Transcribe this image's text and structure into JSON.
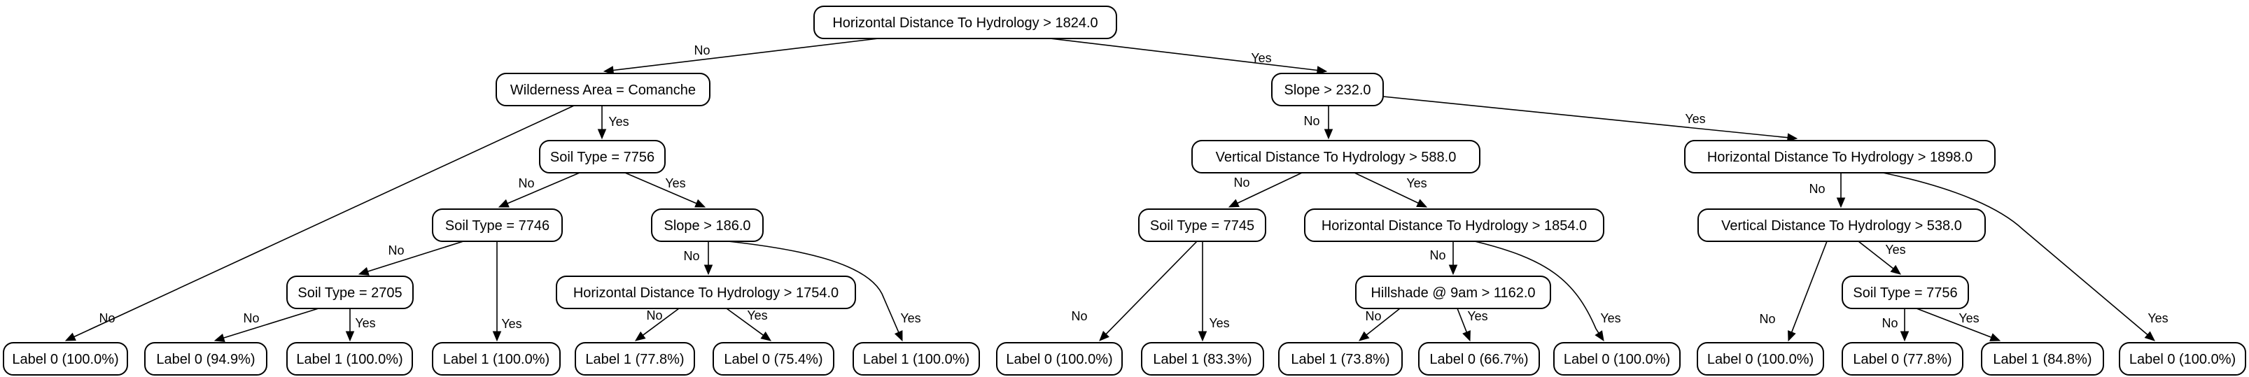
{
  "diagram": {
    "nodes": [
      {
        "id": "n0",
        "label": "Horizontal Distance To Hydrology > 1824.0"
      },
      {
        "id": "n1",
        "label": "Wilderness Area = Comanche"
      },
      {
        "id": "n2",
        "label": "Slope > 232.0"
      },
      {
        "id": "n3",
        "label": "Soil Type = 7756"
      },
      {
        "id": "n4",
        "label": "Vertical Distance To Hydrology > 588.0"
      },
      {
        "id": "n5",
        "label": "Horizontal Distance To Hydrology > 1898.0"
      },
      {
        "id": "n6",
        "label": "Soil Type = 7746"
      },
      {
        "id": "n7",
        "label": "Slope > 186.0"
      },
      {
        "id": "n8",
        "label": "Soil Type = 7745"
      },
      {
        "id": "n9",
        "label": "Horizontal Distance To Hydrology > 1854.0"
      },
      {
        "id": "n10",
        "label": "Vertical Distance To Hydrology > 538.0"
      },
      {
        "id": "n11",
        "label": "Soil Type = 2705"
      },
      {
        "id": "n12",
        "label": "Horizontal Distance To Hydrology > 1754.0"
      },
      {
        "id": "n13",
        "label": "Hillshade @ 9am > 1162.0"
      },
      {
        "id": "n14",
        "label": "Soil Type = 7756"
      },
      {
        "id": "l1",
        "label": "Label 0 (100.0%)"
      },
      {
        "id": "l2",
        "label": "Label 0 (94.9%)"
      },
      {
        "id": "l3",
        "label": "Label 1 (100.0%)"
      },
      {
        "id": "l4",
        "label": "Label 1 (100.0%)"
      },
      {
        "id": "l5",
        "label": "Label 1 (77.8%)"
      },
      {
        "id": "l6",
        "label": "Label 0 (75.4%)"
      },
      {
        "id": "l7",
        "label": "Label 1 (100.0%)"
      },
      {
        "id": "l8",
        "label": "Label 0 (100.0%)"
      },
      {
        "id": "l9",
        "label": "Label 1 (83.3%)"
      },
      {
        "id": "l10",
        "label": "Label 1 (73.8%)"
      },
      {
        "id": "l11",
        "label": "Label 0 (66.7%)"
      },
      {
        "id": "l12",
        "label": "Label 0 (100.0%)"
      },
      {
        "id": "l13",
        "label": "Label 0 (100.0%)"
      },
      {
        "id": "l14",
        "label": "Label 0 (77.8%)"
      },
      {
        "id": "l15",
        "label": "Label 1 (84.8%)"
      },
      {
        "id": "l16",
        "label": "Label 0 (100.0%)"
      }
    ],
    "edges": [
      {
        "from": "n0",
        "to": "n1",
        "label": "No"
      },
      {
        "from": "n0",
        "to": "n2",
        "label": "Yes"
      },
      {
        "from": "n1",
        "to": "l1",
        "label": "No"
      },
      {
        "from": "n1",
        "to": "n3",
        "label": "Yes"
      },
      {
        "from": "n3",
        "to": "n6",
        "label": "No"
      },
      {
        "from": "n3",
        "to": "n7",
        "label": "Yes"
      },
      {
        "from": "n6",
        "to": "n11",
        "label": "No"
      },
      {
        "from": "n6",
        "to": "l4",
        "label": "Yes"
      },
      {
        "from": "n11",
        "to": "l2",
        "label": "No"
      },
      {
        "from": "n11",
        "to": "l3",
        "label": "Yes"
      },
      {
        "from": "n7",
        "to": "n12",
        "label": "No"
      },
      {
        "from": "n7",
        "to": "l7",
        "label": "Yes"
      },
      {
        "from": "n12",
        "to": "l5",
        "label": "No"
      },
      {
        "from": "n12",
        "to": "l6",
        "label": "Yes"
      },
      {
        "from": "n2",
        "to": "n4",
        "label": "No"
      },
      {
        "from": "n2",
        "to": "n5",
        "label": "Yes"
      },
      {
        "from": "n4",
        "to": "n8",
        "label": "No"
      },
      {
        "from": "n4",
        "to": "n9",
        "label": "Yes"
      },
      {
        "from": "n8",
        "to": "l8",
        "label": "No"
      },
      {
        "from": "n8",
        "to": "l9",
        "label": "Yes"
      },
      {
        "from": "n9",
        "to": "n13",
        "label": "No"
      },
      {
        "from": "n9",
        "to": "l12",
        "label": "Yes"
      },
      {
        "from": "n13",
        "to": "l10",
        "label": "No"
      },
      {
        "from": "n13",
        "to": "l11",
        "label": "Yes"
      },
      {
        "from": "n5",
        "to": "n10",
        "label": "No"
      },
      {
        "from": "n5",
        "to": "l16",
        "label": "Yes"
      },
      {
        "from": "n10",
        "to": "l13",
        "label": "No"
      },
      {
        "from": "n10",
        "to": "n14",
        "label": "Yes"
      },
      {
        "from": "n14",
        "to": "l14",
        "label": "No"
      },
      {
        "from": "n14",
        "to": "l15",
        "label": "Yes"
      }
    ]
  }
}
